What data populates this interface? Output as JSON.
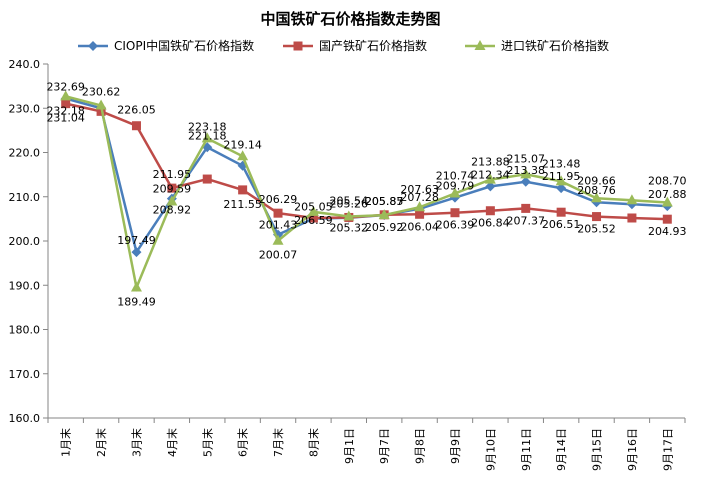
{
  "chart_data": {
    "type": "line",
    "title": "中国铁矿石价格指数走势图",
    "xlabel": "",
    "ylabel": "",
    "ylim": [
      160,
      240
    ],
    "yticks": [
      "160.0",
      "170.0",
      "180.0",
      "190.0",
      "200.0",
      "210.0",
      "220.0",
      "230.0",
      "240.0"
    ],
    "grid": false,
    "legend_position": "top",
    "categories": [
      "1月末",
      "2月末",
      "3月末",
      "4月末",
      "5月末",
      "6月末",
      "7月末",
      "8月末",
      "9月1日",
      "9月7日",
      "9月8日",
      "9月9日",
      "9月10日",
      "9月11日",
      "9月14日",
      "9月15日",
      "9月16日",
      "9月17日"
    ],
    "series": [
      {
        "name": "CIOPI中国铁矿石价格指数",
        "color": "#4A7EBB",
        "marker": "diamond",
        "values": [
          232.18,
          230.0,
          197.49,
          209.59,
          221.18,
          217.0,
          201.43,
          205.05,
          205.26,
          205.87,
          207.28,
          209.79,
          212.34,
          213.38,
          211.95,
          208.76,
          208.3,
          207.88
        ],
        "labels": [
          "232.18",
          null,
          "197.49",
          "209.59",
          "221.18",
          null,
          "201.43",
          "205.05",
          "205.26",
          "205.87",
          "207.28",
          "209.79",
          "212.34",
          "213.38",
          "211.95",
          "208.76",
          null,
          "207.88"
        ]
      },
      {
        "name": "国产铁矿石价格指数",
        "color": "#BE4B48",
        "marker": "square",
        "values": [
          231.04,
          229.3,
          226.05,
          211.95,
          214.0,
          211.55,
          206.29,
          205.2,
          205.32,
          205.92,
          206.04,
          206.39,
          206.84,
          207.37,
          206.51,
          205.52,
          205.2,
          204.93
        ],
        "labels": [
          "231.04",
          null,
          "226.05",
          "211.95",
          null,
          "211.55",
          "206.29",
          null,
          "205.32",
          "205.92",
          "206.04",
          "206.39",
          "206.84",
          "207.37",
          "206.51",
          "205.52",
          null,
          "204.93"
        ]
      },
      {
        "name": "进口铁矿石价格指数",
        "color": "#9BBB59",
        "marker": "triangle",
        "values": [
          232.69,
          230.62,
          189.49,
          208.92,
          223.18,
          219.14,
          200.07,
          206.59,
          205.54,
          205.85,
          207.63,
          210.74,
          213.88,
          215.07,
          213.48,
          209.66,
          209.2,
          208.7
        ],
        "labels": [
          "232.69",
          "230.62",
          "189.49",
          "208.92",
          "223.18",
          "219.14",
          "200.07",
          "206.59",
          "205.54",
          "205.85",
          "207.63",
          "210.74",
          "213.88",
          "215.07",
          "213.48",
          "209.66",
          null,
          "208.70"
        ]
      }
    ]
  }
}
